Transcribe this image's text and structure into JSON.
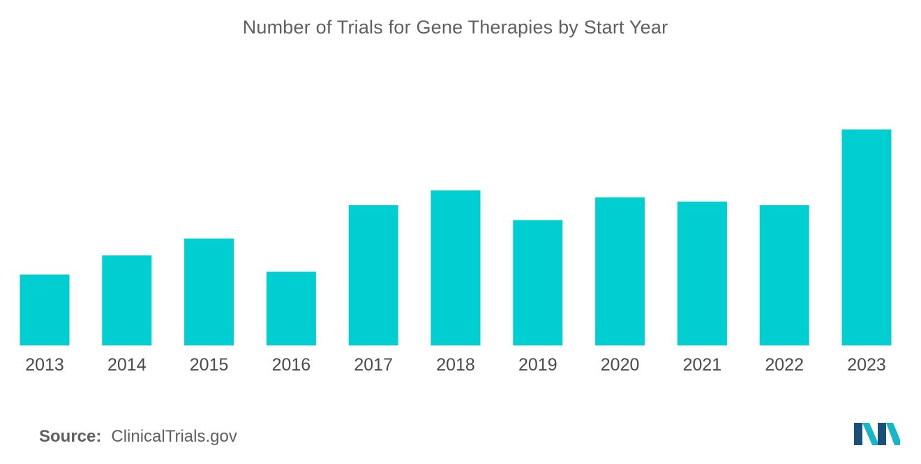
{
  "chart_data": {
    "type": "bar",
    "title": "Number of Trials for Gene Therapies by Start Year",
    "xlabel": "",
    "ylabel": "",
    "categories": [
      "2013",
      "2014",
      "2015",
      "2016",
      "2017",
      "2018",
      "2019",
      "2020",
      "2021",
      "2022",
      "2023"
    ],
    "values": [
      100,
      127,
      151,
      104,
      198,
      219,
      177,
      209,
      203,
      198,
      305
    ],
    "ylim": [
      0,
      340
    ],
    "grid": false,
    "legend": "none",
    "bar_color": "#00ced1"
  },
  "source": {
    "label": "Source:",
    "text": "ClinicalTrials.gov"
  },
  "logo": {
    "icon": "mordor-intelligence-logo-icon",
    "color_dark": "#1a4f7a",
    "color_light": "#19b5c9"
  }
}
